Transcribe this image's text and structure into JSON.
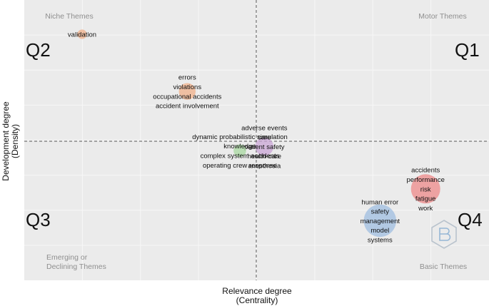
{
  "chart_data": {
    "type": "scatter",
    "subtype": "thematic-map",
    "xlabel_lines": [
      "Relevance degree",
      "(Centrality)"
    ],
    "ylabel_lines": [
      "Development degree",
      "(Density)"
    ],
    "grid": true,
    "quadrant_labels": [
      "Q2",
      "Q1",
      "Q3",
      "Q4"
    ],
    "theme_labels": {
      "top_left": [
        "Niche Themes"
      ],
      "top_right": [
        "Motor Themes"
      ],
      "bottom_left": [
        "Emerging or",
        "Declining Themes"
      ],
      "bottom_right": [
        "Basic Themes"
      ]
    },
    "clusters": [
      {
        "keywords": [
          "validation"
        ],
        "color": "#f0b08a",
        "centrality": 0.0,
        "density": 1.0,
        "size": 0.12
      },
      {
        "keywords": [
          "errors",
          "violations",
          "occupational accidents",
          "accident involvement"
        ],
        "color": "#f0b08a",
        "centrality": 0.3,
        "density": 0.73,
        "size": 0.35
      },
      {
        "keywords": [
          "adverse events",
          "care",
          "patient safety",
          "health-care",
          "anesthesia"
        ],
        "color": "#c9a6d6",
        "centrality": 0.52,
        "density": 0.47,
        "size": 0.4
      },
      {
        "keywords": [
          "dynamic probabilistic simulation",
          "knowledge",
          "complex system accidents",
          "operating crew response"
        ],
        "color": "#a8d8a0",
        "centrality": 0.45,
        "density": 0.45,
        "size": 0.22
      },
      {
        "keywords": [
          "accidents",
          "performance",
          "risk",
          "fatigue",
          "work"
        ],
        "color": "#ee8a8a",
        "centrality": 0.98,
        "density": 0.27,
        "size": 0.75
      },
      {
        "keywords": [
          "human error",
          "safety",
          "management",
          "model",
          "systems"
        ],
        "color": "#9fbde0",
        "centrality": 0.85,
        "density": 0.12,
        "size": 0.85
      }
    ]
  }
}
